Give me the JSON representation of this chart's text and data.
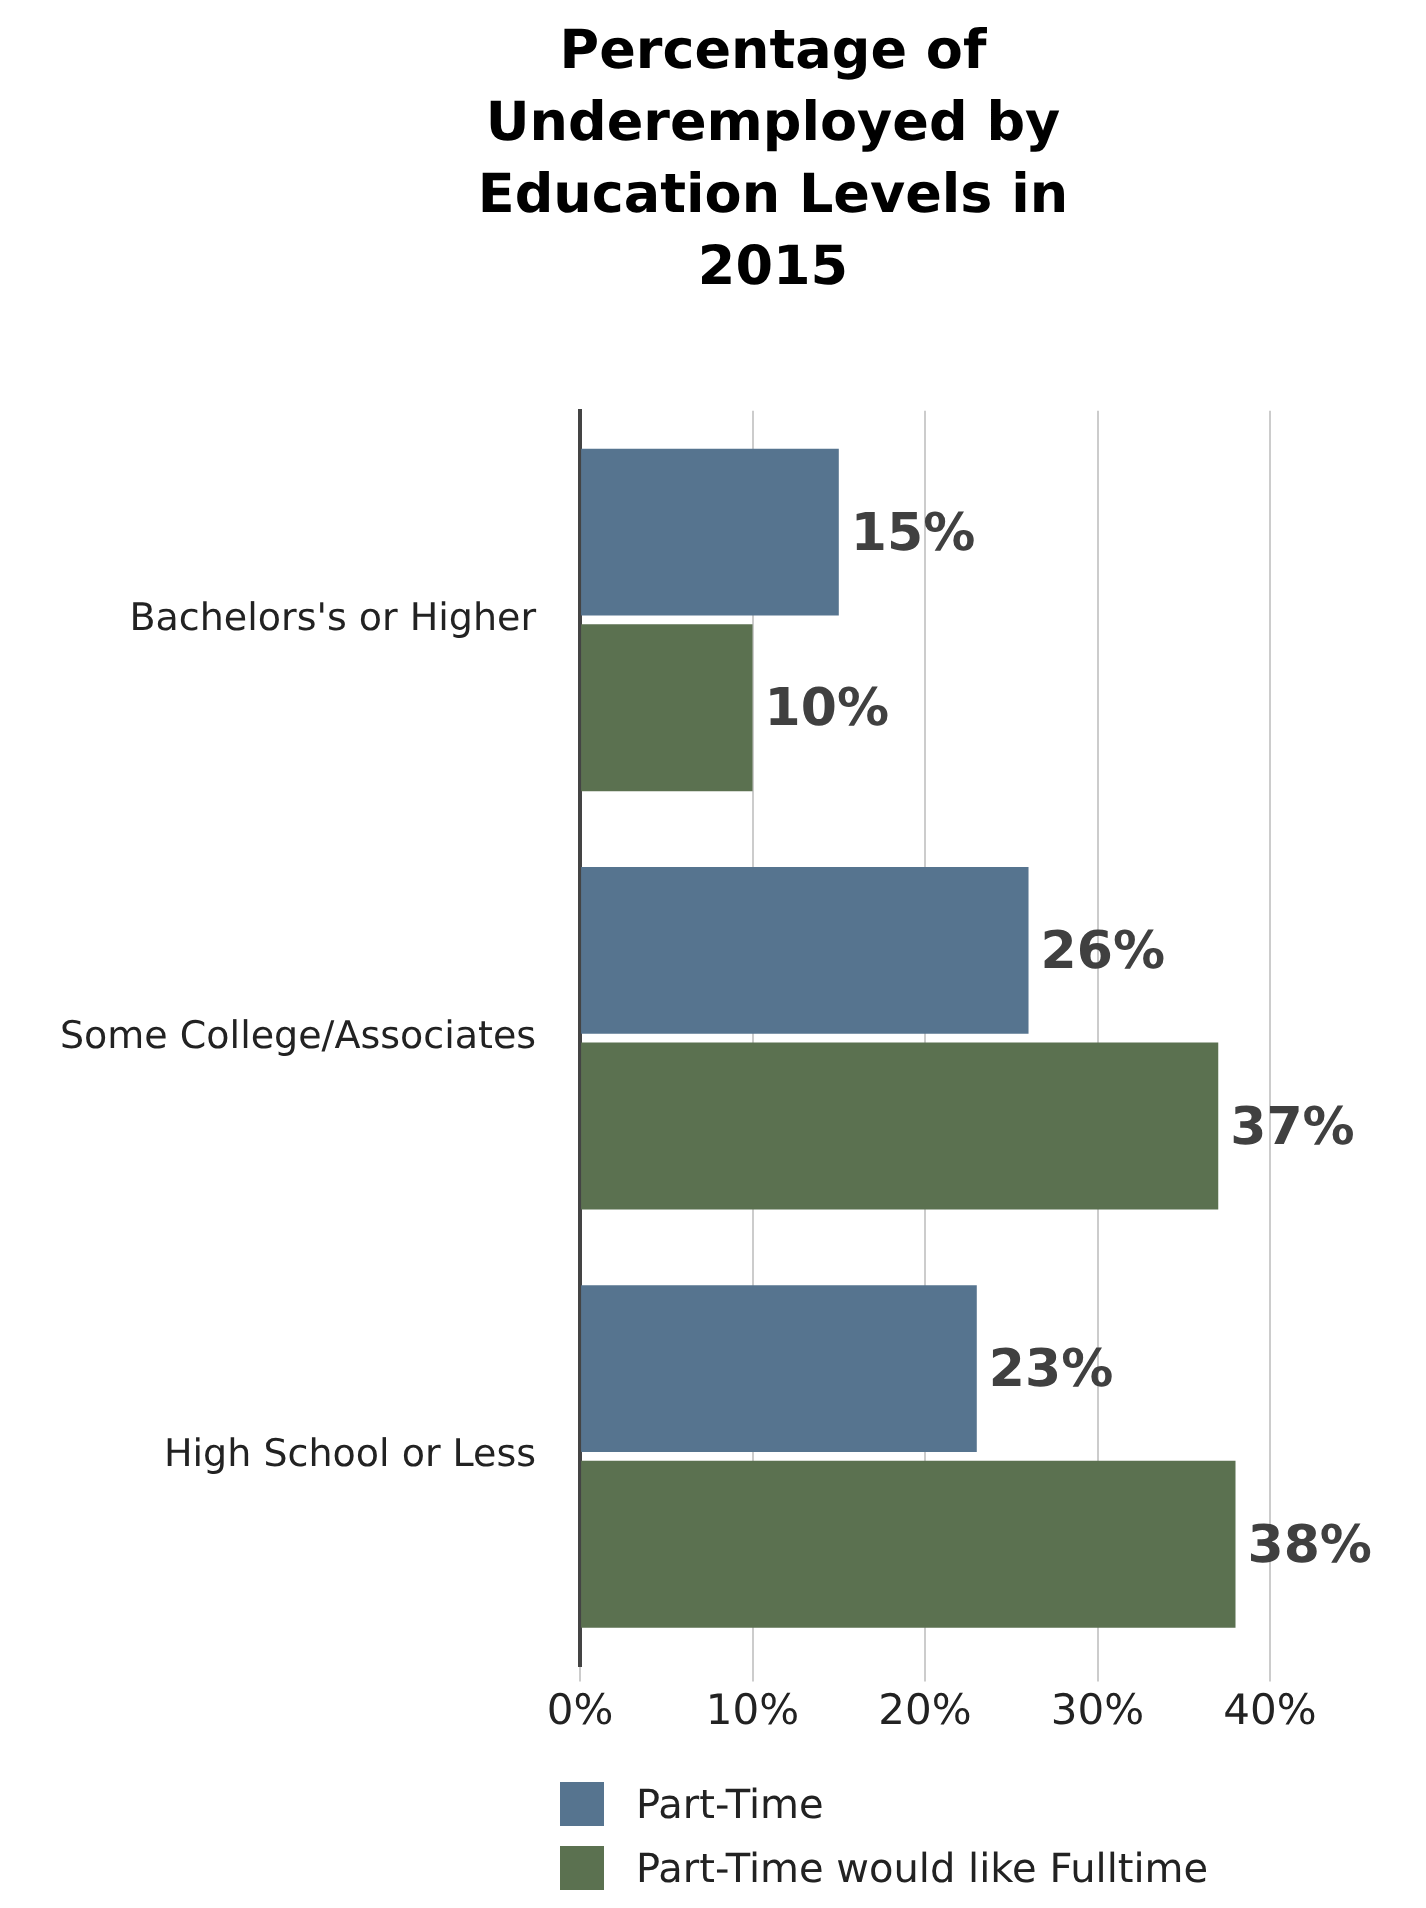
{
  "chart_data": {
    "type": "bar",
    "orientation": "horizontal",
    "title": "Percentage of Underemployed by Education Levels  in 2015",
    "categories": [
      "Bachelors's or Higher",
      "Some College/Associates",
      "High School or Less"
    ],
    "series": [
      {
        "name": "Part-Time",
        "color": "#56748f",
        "values": [
          15,
          26,
          23
        ],
        "value_labels": [
          "15%",
          "26%",
          "23%"
        ]
      },
      {
        "name": "Part-Time would like Fulltime",
        "color": "#5b7150",
        "values": [
          10,
          37,
          38
        ],
        "value_labels": [
          "10%",
          "37%",
          "38%"
        ]
      }
    ],
    "xlim": [
      0,
      40
    ],
    "xticks": [
      {
        "value": 0,
        "label": "0%"
      },
      {
        "value": 10,
        "label": "10%"
      },
      {
        "value": 20,
        "label": "20%"
      },
      {
        "value": 30,
        "label": "30%"
      },
      {
        "value": 40,
        "label": "40%"
      }
    ],
    "grid": "x",
    "legend": "bottom"
  }
}
